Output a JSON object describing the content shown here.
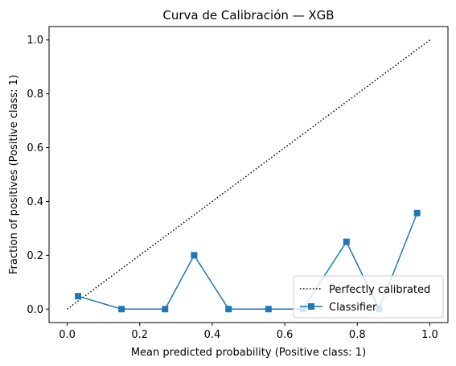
{
  "chart_data": {
    "type": "line",
    "title": "Curva de Calibración — XGB",
    "xlabel": "Mean predicted probability (Positive class: 1)",
    "ylabel": "Fraction of positives (Positive class: 1)",
    "xlim": [
      -0.05,
      1.05
    ],
    "ylim": [
      -0.05,
      1.05
    ],
    "xticks": [
      "0.0",
      "0.2",
      "0.4",
      "0.6",
      "0.8",
      "1.0"
    ],
    "yticks": [
      "0.0",
      "0.2",
      "0.4",
      "0.6",
      "0.8",
      "1.0"
    ],
    "grid": false,
    "legend_position": "lower-right",
    "series": [
      {
        "name": "Perfectly calibrated",
        "style": "dotted",
        "color": "#000000",
        "x": [
          0,
          1
        ],
        "y": [
          0,
          1
        ]
      },
      {
        "name": "Classifier",
        "style": "solid",
        "marker": "square",
        "color": "#1f77b4",
        "x": [
          0.03,
          0.15,
          0.27,
          0.35,
          0.445,
          0.555,
          0.65,
          0.77,
          0.86,
          0.965
        ],
        "y": [
          0.048,
          0.0,
          0.0,
          0.2,
          0.0,
          0.0,
          0.0,
          0.25,
          0.0,
          0.357
        ]
      }
    ]
  }
}
